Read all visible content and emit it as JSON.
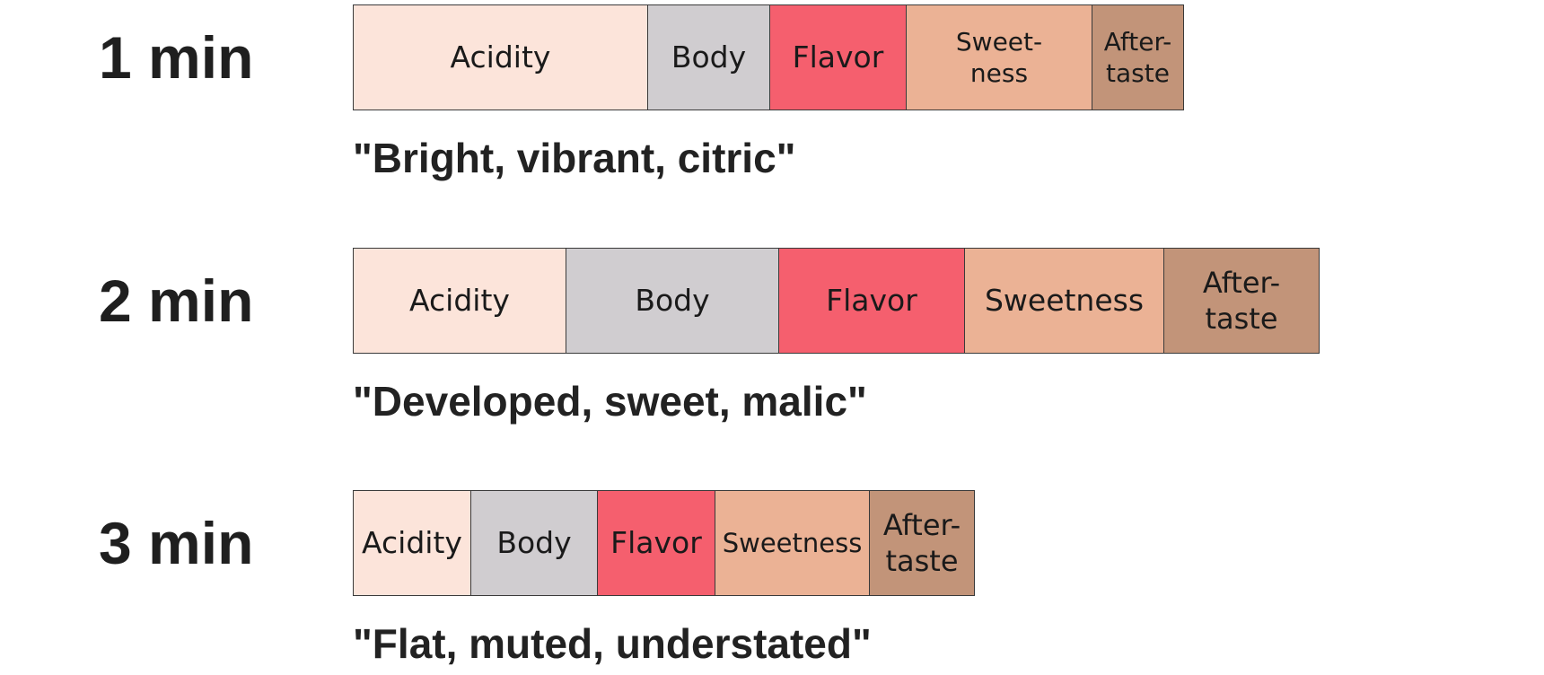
{
  "chart_data": {
    "type": "bar",
    "orientation": "horizontal-stacked",
    "rows": [
      {
        "label": "1 min",
        "note": "\"Bright, vibrant, citric\"",
        "segments": [
          {
            "name": "Acidity",
            "text": "Acidity",
            "value": 3.25
          },
          {
            "name": "Body",
            "text": "Body",
            "value": 1.35
          },
          {
            "name": "Flavor",
            "text": "Flavor",
            "value": 1.5
          },
          {
            "name": "Sweetness",
            "text": "Sweet-\nness",
            "value": 2.05
          },
          {
            "name": "Aftertaste",
            "text": "After-\ntaste",
            "value": 1.0
          }
        ]
      },
      {
        "label": "2 min",
        "note": "\"Developed, sweet, malic\"",
        "segments": [
          {
            "name": "Acidity",
            "text": "Acidity",
            "value": 2.35
          },
          {
            "name": "Body",
            "text": "Body",
            "value": 2.35
          },
          {
            "name": "Flavor",
            "text": "Flavor",
            "value": 2.05
          },
          {
            "name": "Sweetness",
            "text": "Sweetness",
            "value": 2.2
          },
          {
            "name": "Aftertaste",
            "text": "After-\ntaste",
            "value": 1.7
          }
        ]
      },
      {
        "label": "3 min",
        "note": "\"Flat, muted, understated\"",
        "segments": [
          {
            "name": "Acidity",
            "text": "Acidity",
            "value": 1.3
          },
          {
            "name": "Body",
            "text": "Body",
            "value": 1.4
          },
          {
            "name": "Flavor",
            "text": "Flavor",
            "value": 1.3
          },
          {
            "name": "Sweetness",
            "text": "Sweetness",
            "value": 1.7
          },
          {
            "name": "Aftertaste",
            "text": "After-\ntaste",
            "value": 1.15
          }
        ]
      }
    ],
    "colors": {
      "Acidity": "#fce4da",
      "Body": "#d0cdd0",
      "Flavor": "#f55f6e",
      "Sweetness": "#ebb295",
      "Aftertaste": "#c29479"
    },
    "grid": false,
    "legend": "none"
  }
}
